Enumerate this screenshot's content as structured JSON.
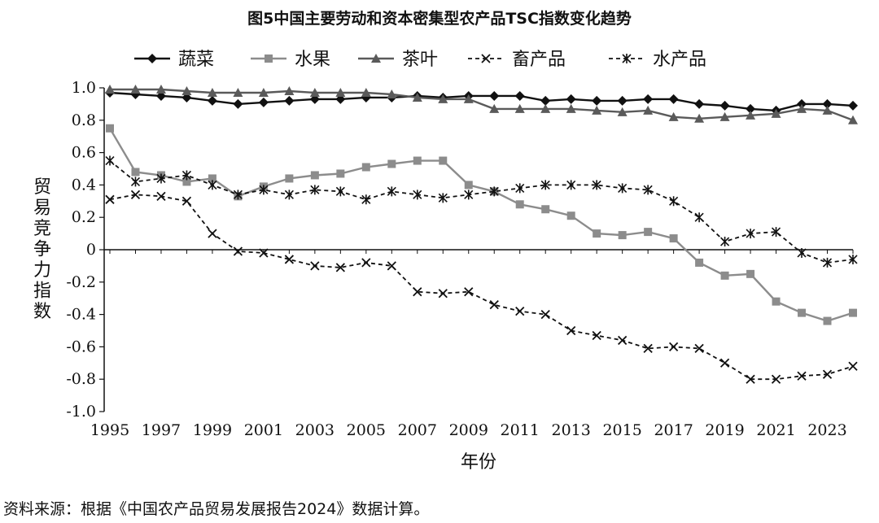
{
  "title": "图5中国主要劳动和资本密集型农产品TSC指数变化趋势",
  "source_note": "资料来源：根据《中国农产品贸易发展报告2024》数据计算。",
  "chart_data": {
    "type": "line",
    "title": "图5中国主要劳动和资本密集型农产品TSC指数变化趋势",
    "xlabel": "年份",
    "ylabel": "贸易竞争力指数",
    "ylim": [
      -1.0,
      1.0
    ],
    "xlim": [
      1995,
      2024
    ],
    "grid": false,
    "legend_position": "top",
    "x_tick_labels": [
      "1995",
      "1997",
      "1999",
      "2001",
      "2003",
      "2005",
      "2007",
      "2009",
      "2011",
      "2013",
      "2015",
      "2017",
      "2019",
      "2021",
      "2023"
    ],
    "y_tick_labels": [
      "1.0",
      "0.8",
      "0.6",
      "0.4",
      "0.2",
      "0",
      "-0.2",
      "-0.4",
      "-0.6",
      "-0.8",
      "-1.0"
    ],
    "y_tick_values": [
      1.0,
      0.8,
      0.6,
      0.4,
      0.2,
      0,
      -0.2,
      -0.4,
      -0.6,
      -0.8,
      -1.0
    ],
    "x": [
      1995,
      1996,
      1997,
      1998,
      1999,
      2000,
      2001,
      2002,
      2003,
      2004,
      2005,
      2006,
      2007,
      2008,
      2009,
      2010,
      2011,
      2012,
      2013,
      2014,
      2015,
      2016,
      2017,
      2018,
      2019,
      2020,
      2021,
      2022,
      2023,
      2024
    ],
    "series": [
      {
        "name": "蔬菜",
        "line": "solid",
        "marker": "diamond",
        "color": "#111111",
        "values": [
          0.97,
          0.96,
          0.95,
          0.94,
          0.92,
          0.9,
          0.91,
          0.92,
          0.93,
          0.93,
          0.94,
          0.94,
          0.95,
          0.94,
          0.95,
          0.95,
          0.95,
          0.92,
          0.93,
          0.92,
          0.92,
          0.93,
          0.93,
          0.9,
          0.89,
          0.87,
          0.86,
          0.9,
          0.9,
          0.89
        ]
      },
      {
        "name": "水果",
        "line": "solid",
        "marker": "square",
        "color": "#8c8c8c",
        "values": [
          0.75,
          0.48,
          0.46,
          0.42,
          0.44,
          0.33,
          0.39,
          0.44,
          0.46,
          0.47,
          0.51,
          0.53,
          0.55,
          0.55,
          0.4,
          0.36,
          0.28,
          0.25,
          0.21,
          0.1,
          0.09,
          0.11,
          0.07,
          -0.08,
          -0.16,
          -0.15,
          -0.32,
          -0.39,
          -0.44,
          -0.39
        ]
      },
      {
        "name": "茶叶",
        "line": "solid",
        "marker": "triangle",
        "color": "#5a5a5a",
        "values": [
          0.99,
          0.99,
          0.99,
          0.98,
          0.97,
          0.97,
          0.97,
          0.98,
          0.97,
          0.97,
          0.97,
          0.96,
          0.94,
          0.93,
          0.93,
          0.87,
          0.87,
          0.87,
          0.87,
          0.86,
          0.85,
          0.86,
          0.82,
          0.81,
          0.82,
          0.83,
          0.84,
          0.87,
          0.86,
          0.8
        ]
      },
      {
        "name": "畜产品",
        "line": "dashed",
        "marker": "x",
        "color": "#111111",
        "values": [
          0.31,
          0.34,
          0.33,
          0.3,
          0.1,
          -0.01,
          -0.02,
          -0.06,
          -0.1,
          -0.11,
          -0.08,
          -0.1,
          -0.26,
          -0.27,
          -0.26,
          -0.34,
          -0.38,
          -0.4,
          -0.5,
          -0.53,
          -0.56,
          -0.61,
          -0.6,
          -0.61,
          -0.7,
          -0.8,
          -0.8,
          -0.78,
          -0.77,
          -0.72
        ]
      },
      {
        "name": "水产品",
        "line": "dashed",
        "marker": "star",
        "color": "#111111",
        "values": [
          0.55,
          0.42,
          0.44,
          0.46,
          0.4,
          0.34,
          0.37,
          0.34,
          0.37,
          0.36,
          0.31,
          0.36,
          0.34,
          0.32,
          0.34,
          0.36,
          0.38,
          0.4,
          0.4,
          0.4,
          0.38,
          0.37,
          0.3,
          0.2,
          0.05,
          0.1,
          0.11,
          -0.02,
          -0.08,
          -0.06
        ]
      }
    ]
  }
}
